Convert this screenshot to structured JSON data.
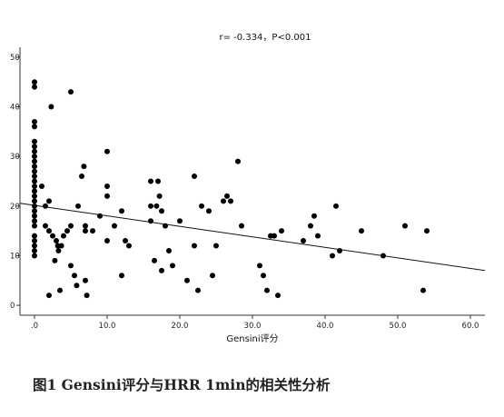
{
  "chart_data": {
    "type": "scatter",
    "title": "r= -0.334，P<0.001",
    "xlabel": "Gensini评分",
    "ylabel": "",
    "xlim": [
      -2,
      62
    ],
    "ylim": [
      -2,
      52
    ],
    "xticks": [
      0,
      10,
      20,
      30,
      40,
      50,
      60
    ],
    "xtick_labels": [
      ".0",
      "10.0",
      "20.0",
      "30.0",
      "40.0",
      "50.0",
      "60.0"
    ],
    "yticks": [
      0,
      10,
      20,
      30,
      40,
      50
    ],
    "ytick_labels": [
      "0",
      "10",
      "20",
      "30",
      "40",
      "50"
    ],
    "grid": false,
    "points": [
      [
        0,
        45
      ],
      [
        0,
        44
      ],
      [
        0,
        37
      ],
      [
        0,
        36
      ],
      [
        0,
        33
      ],
      [
        0,
        32
      ],
      [
        0,
        31
      ],
      [
        0,
        30
      ],
      [
        0,
        29
      ],
      [
        0,
        28
      ],
      [
        0,
        27
      ],
      [
        0,
        26
      ],
      [
        0,
        25
      ],
      [
        0,
        24
      ],
      [
        0,
        23
      ],
      [
        0,
        22
      ],
      [
        0,
        21
      ],
      [
        0,
        20
      ],
      [
        0,
        19
      ],
      [
        0,
        18
      ],
      [
        0,
        17
      ],
      [
        0,
        16
      ],
      [
        0,
        14
      ],
      [
        0,
        13
      ],
      [
        0,
        12
      ],
      [
        0,
        11
      ],
      [
        0,
        10
      ],
      [
        1,
        24
      ],
      [
        1.5,
        20
      ],
      [
        1.5,
        16
      ],
      [
        2,
        21
      ],
      [
        2,
        15
      ],
      [
        2,
        2
      ],
      [
        2.3,
        40
      ],
      [
        2.5,
        14
      ],
      [
        2.8,
        9
      ],
      [
        3,
        13
      ],
      [
        3.2,
        12
      ],
      [
        3.3,
        11
      ],
      [
        3.5,
        3
      ],
      [
        3.7,
        12
      ],
      [
        4,
        14
      ],
      [
        4.5,
        15
      ],
      [
        5,
        43
      ],
      [
        5,
        8
      ],
      [
        5,
        16
      ],
      [
        5.5,
        6
      ],
      [
        5.8,
        4
      ],
      [
        6,
        20
      ],
      [
        6.5,
        26
      ],
      [
        6.8,
        28
      ],
      [
        7,
        16
      ],
      [
        7,
        15
      ],
      [
        7,
        5
      ],
      [
        7.2,
        2
      ],
      [
        8,
        15
      ],
      [
        9,
        18
      ],
      [
        10,
        31
      ],
      [
        10,
        24
      ],
      [
        10,
        22
      ],
      [
        10,
        13
      ],
      [
        11,
        16
      ],
      [
        12,
        6
      ],
      [
        12,
        19
      ],
      [
        12.5,
        13
      ],
      [
        13,
        12
      ],
      [
        16,
        25
      ],
      [
        16,
        20
      ],
      [
        16,
        17
      ],
      [
        16.5,
        9
      ],
      [
        16.8,
        20
      ],
      [
        17,
        25
      ],
      [
        17.2,
        22
      ],
      [
        17.5,
        19
      ],
      [
        17.5,
        7
      ],
      [
        18,
        16
      ],
      [
        18.5,
        11
      ],
      [
        19,
        8
      ],
      [
        20,
        17
      ],
      [
        21,
        5
      ],
      [
        22,
        26
      ],
      [
        22,
        12
      ],
      [
        22.5,
        3
      ],
      [
        23,
        20
      ],
      [
        24,
        19
      ],
      [
        24.5,
        6
      ],
      [
        25,
        12
      ],
      [
        26,
        21
      ],
      [
        26.5,
        22
      ],
      [
        27,
        21
      ],
      [
        28,
        29
      ],
      [
        28.5,
        16
      ],
      [
        31,
        8
      ],
      [
        31.5,
        6
      ],
      [
        32,
        3
      ],
      [
        32.5,
        14
      ],
      [
        33,
        14
      ],
      [
        33.5,
        2
      ],
      [
        34,
        15
      ],
      [
        37,
        13
      ],
      [
        38,
        16
      ],
      [
        38.5,
        18
      ],
      [
        39,
        14
      ],
      [
        41,
        10
      ],
      [
        41.5,
        20
      ],
      [
        42,
        11
      ],
      [
        45,
        15
      ],
      [
        48,
        10
      ],
      [
        51,
        16
      ],
      [
        53.5,
        3
      ],
      [
        54,
        15
      ]
    ],
    "fit_line": {
      "x": [
        -2,
        62
      ],
      "y": [
        20.57,
        7.01
      ]
    }
  },
  "caption": "图1    Gensini评分与HRR  1min的相关性分析"
}
